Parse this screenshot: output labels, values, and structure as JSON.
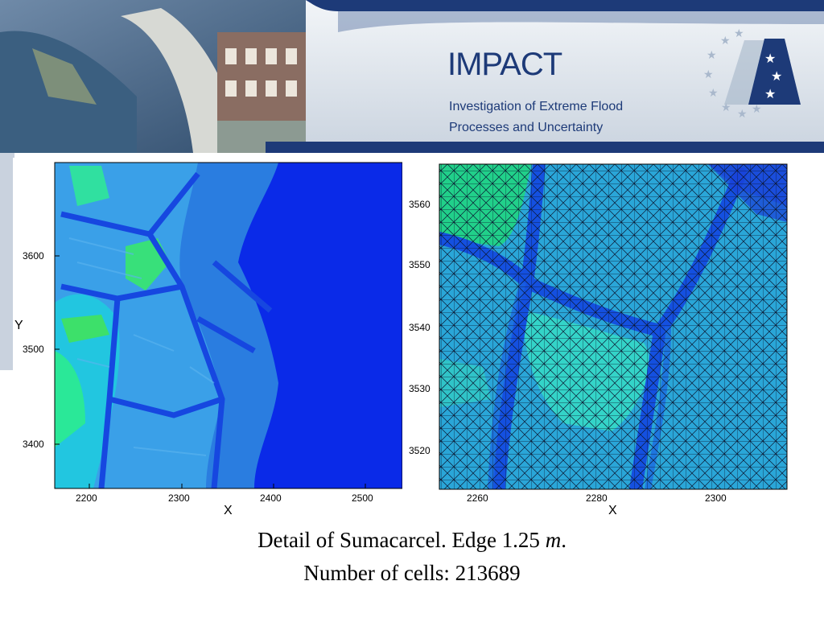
{
  "header": {
    "title": "IMPACT",
    "subtitle_line1": "Investigation of Extreme Flood",
    "subtitle_line2": "Processes and Uncertainty",
    "colors": {
      "navy": "#1d3a78",
      "light": "#dfe6ee"
    }
  },
  "left_plot": {
    "xlabel": "X",
    "ylabel": "Y",
    "xticks": [
      "2200",
      "2300",
      "2400",
      "2500"
    ],
    "yticks": [
      "3600",
      "3500",
      "3400"
    ]
  },
  "right_plot": {
    "xlabel": "X",
    "xticks": [
      "2260",
      "2280",
      "2300"
    ],
    "yticks": [
      "3560",
      "3550",
      "3540",
      "3530",
      "3520"
    ]
  },
  "caption": {
    "line1_prefix": "Detail of Sumacarcel. Edge 1.25 ",
    "line1_unit": "m",
    "line1_suffix": ".",
    "line2": "Number of cells: 213689"
  }
}
